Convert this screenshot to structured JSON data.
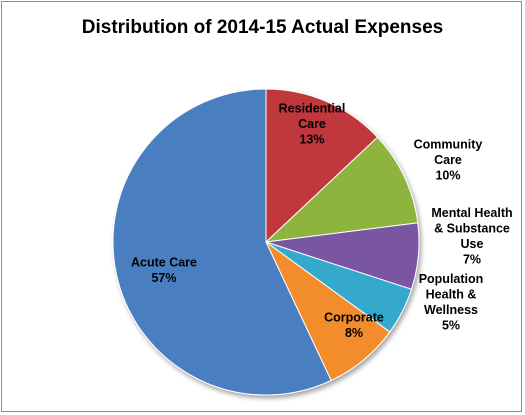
{
  "chart_data": {
    "type": "pie",
    "title": "Distribution of 2014-15 Actual Expenses",
    "start_angle_deg": 0,
    "slices": [
      {
        "label": "Residential Care",
        "lines": [
          "Residential",
          "Care",
          "13%"
        ],
        "value": 13,
        "color": "#c0393b",
        "label_color": "#000000"
      },
      {
        "label": "Community Care",
        "lines": [
          "Community",
          "Care",
          "10%"
        ],
        "value": 10,
        "color": "#8db43e",
        "label_color": "#000000"
      },
      {
        "label": "Mental Health & Substance Use",
        "lines": [
          "Mental Health",
          "& Substance",
          "Use",
          "7%"
        ],
        "value": 7,
        "color": "#7a57a2",
        "label_color": "#000000"
      },
      {
        "label": "Population Health & Wellness",
        "lines": [
          "Population",
          "Health &",
          "Wellness",
          "5%"
        ],
        "value": 5,
        "color": "#35a9cc",
        "label_color": "#000000"
      },
      {
        "label": "Corporate",
        "lines": [
          "Corporate",
          "8%"
        ],
        "value": 8,
        "color": "#f38c2a",
        "label_color": "#000000"
      },
      {
        "label": "Acute Care",
        "lines": [
          "Acute Care",
          "57%"
        ],
        "value": 57,
        "color": "#4a7fc1",
        "label_color": "#000000"
      }
    ]
  }
}
